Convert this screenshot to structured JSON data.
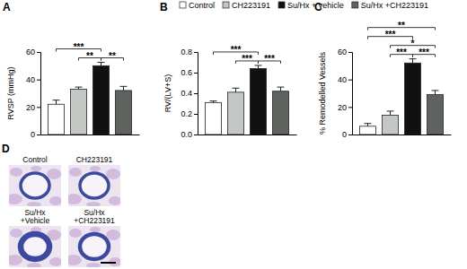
{
  "chart_data": [
    {
      "panel": "A",
      "type": "bar",
      "y_label": "RVSP (mmHg)",
      "categories": [
        null
      ],
      "ylim": [
        0,
        60
      ],
      "yticks": [
        0,
        20,
        40,
        60
      ],
      "series": [
        {
          "color": "#ffffff",
          "values": [
            22
          ],
          "errors": [
            3
          ]
        },
        {
          "color": "#c4c8c4",
          "values": [
            33
          ],
          "errors": [
            1.5
          ]
        },
        {
          "color": "#111111",
          "values": [
            50
          ],
          "errors": [
            2.5
          ]
        },
        {
          "color": "#5f6360",
          "values": [
            32
          ],
          "errors": [
            3
          ]
        }
      ],
      "annotations": [
        {
          "from": 0,
          "to": 2,
          "label": "***"
        },
        {
          "from": 1,
          "to": 2,
          "label": "**"
        },
        {
          "from": 2,
          "to": 3,
          "label": "**"
        }
      ]
    },
    {
      "panel": "B",
      "type": "bar",
      "y_label": "RV/(LV+S)",
      "categories": [
        null
      ],
      "ylim": [
        0,
        0.8
      ],
      "yticks": [
        {
          "value": 0,
          "label": "0.0"
        },
        0.2,
        0.4,
        0.6,
        0.8
      ],
      "legend": "top",
      "series": [
        {
          "name": "Control",
          "color": "#ffffff",
          "values": [
            0.31
          ],
          "errors": [
            0.015
          ]
        },
        {
          "name": "CH223191",
          "color": "#c4c8c4",
          "values": [
            0.41
          ],
          "errors": [
            0.04
          ]
        },
        {
          "name": "Su/Hx + vehicle",
          "color": "#111111",
          "values": [
            0.64
          ],
          "errors": [
            0.03
          ]
        },
        {
          "name": "Su/Hx +CH223191",
          "color": "#5f6360",
          "values": [
            0.42
          ],
          "errors": [
            0.04
          ]
        }
      ],
      "annotations": [
        {
          "from": 0,
          "to": 2,
          "label": "***"
        },
        {
          "from": 1,
          "to": 2,
          "label": "***"
        },
        {
          "from": 2,
          "to": 3,
          "label": "***"
        }
      ]
    },
    {
      "panel": "C",
      "type": "bar",
      "y_label": "% Remodelled Vessels",
      "categories": [
        null
      ],
      "ylim": [
        0,
        60
      ],
      "yticks": [
        0,
        20,
        40,
        60
      ],
      "series": [
        {
          "color": "#ffffff",
          "values": [
            6
          ],
          "errors": [
            2
          ]
        },
        {
          "color": "#c4c8c4",
          "values": [
            14
          ],
          "errors": [
            3
          ]
        },
        {
          "color": "#111111",
          "values": [
            52
          ],
          "errors": [
            3
          ]
        },
        {
          "color": "#5f6360",
          "values": [
            29
          ],
          "errors": [
            3
          ]
        }
      ],
      "annotations": [
        {
          "from": 0,
          "to": 3,
          "label": "**"
        },
        {
          "from": 1,
          "to": 3,
          "label": "*"
        },
        {
          "from": 0,
          "to": 2,
          "label": "***"
        },
        {
          "from": 1,
          "to": 2,
          "label": "***"
        },
        {
          "from": 2,
          "to": 3,
          "label": "***"
        }
      ]
    }
  ],
  "panel_d": {
    "panel": "D",
    "images": [
      {
        "label": [
          "Control"
        ]
      },
      {
        "label": [
          "CH223191"
        ]
      },
      {
        "label": [
          "Su/Hx",
          "+Vehicle"
        ]
      },
      {
        "label": [
          "Su/Hx",
          "+CH223191"
        ]
      }
    ]
  }
}
